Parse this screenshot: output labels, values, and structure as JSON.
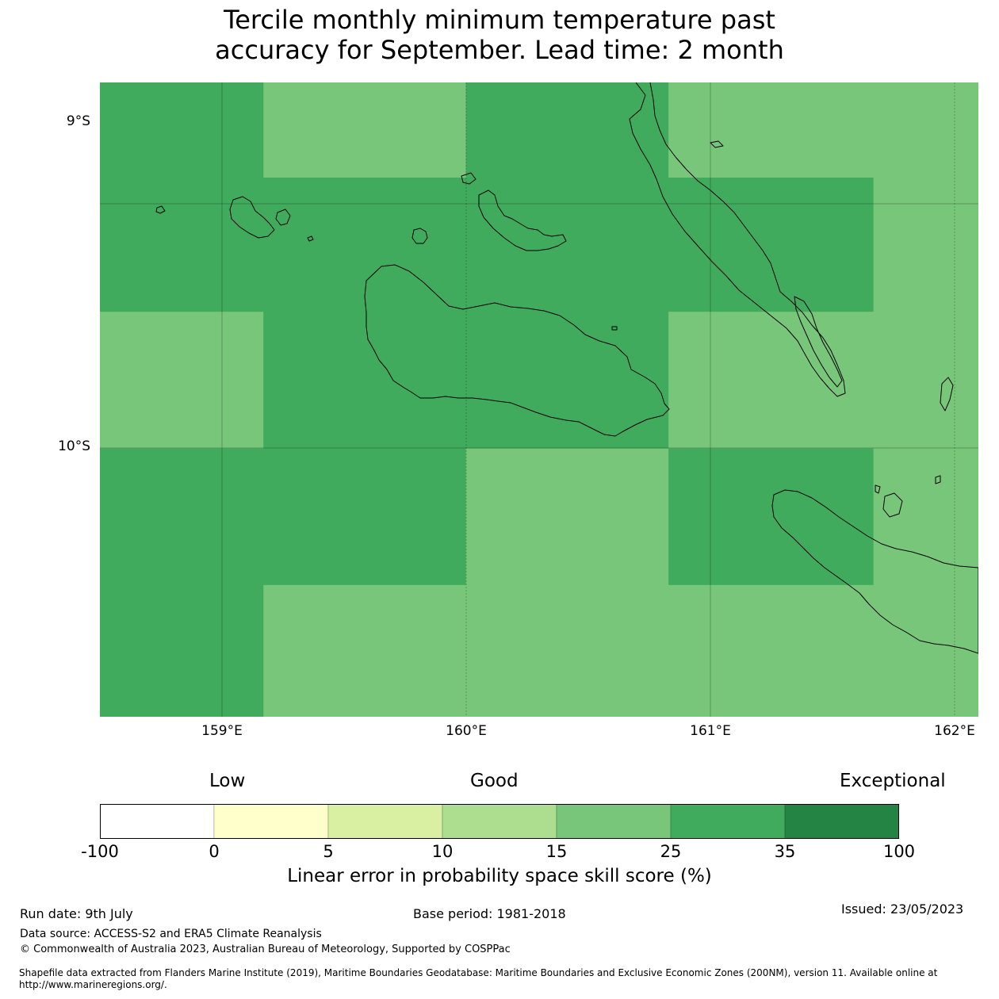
{
  "title": {
    "line1": "Tercile monthly minimum temperature past",
    "line2": "accuracy for September. Lead time: 2 month"
  },
  "map": {
    "lat_labels": [
      "9°S",
      "10°S"
    ],
    "lon_labels": [
      "159°E",
      "160°E",
      "161°E",
      "162°E"
    ],
    "colors": {
      "band_15_25": "#78c67a",
      "band_25_35": "#41ab5d",
      "coast": "#000000"
    }
  },
  "chart_data": {
    "type": "heatmap",
    "lon_range": [
      158.5,
      162.1
    ],
    "lat_range": [
      -8.5,
      -11.1
    ],
    "lon_edges": [
      158.5,
      159.17,
      160.0,
      160.83,
      161.67,
      162.1
    ],
    "lat_edges": [
      -8.5,
      -8.89,
      -9.44,
      -10.0,
      -10.56,
      -11.1
    ],
    "cell_class": [
      [
        25,
        15,
        25,
        15,
        15
      ],
      [
        25,
        25,
        25,
        25,
        15
      ],
      [
        15,
        25,
        25,
        15,
        15
      ],
      [
        25,
        25,
        15,
        25,
        15
      ],
      [
        25,
        15,
        15,
        15,
        15
      ]
    ],
    "grid": true
  },
  "legend": {
    "categories": [
      "Low",
      "Good",
      "Exceptional"
    ],
    "ticks": [
      "-100",
      "0",
      "5",
      "10",
      "15",
      "25",
      "35",
      "100"
    ],
    "colors": [
      "#ffffff",
      "#ffffcc",
      "#d9f0a3",
      "#addd8e",
      "#78c67a",
      "#41ab5d",
      "#238443"
    ],
    "title": "Linear error in probability space skill score (%)"
  },
  "footer": {
    "run_date": "Run date: 9th July",
    "base_period": "Base period: 1981-2018",
    "issued": "Issued: 23/05/2023",
    "data_source": "Data source: ACCESS-S2 and ERA5 Climate Reanalysis",
    "copyright": "© Commonwealth of Australia 2023, Australian Bureau of Meteorology, Supported by COSPPac",
    "shapefile": "Shapefile data extracted from Flanders Marine Institute (2019), Maritime Boundaries Geodatabase: Maritime Boundaries and Exclusive Economic Zones (200NM), version 11. Available online at http://www.marineregions.org/."
  }
}
